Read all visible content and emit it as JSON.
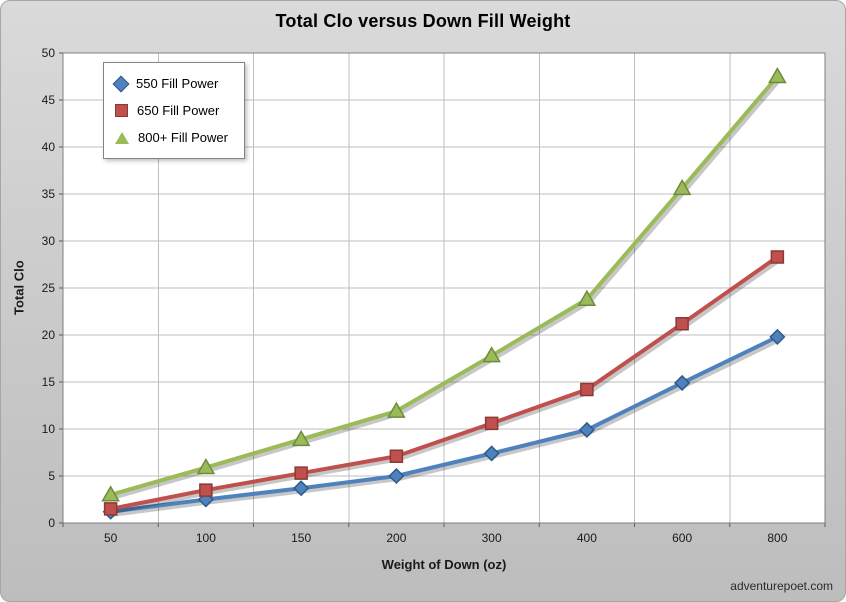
{
  "watermark": "adventurepoet.com",
  "chart_data": {
    "type": "line",
    "title": "Total Clo versus Down Fill Weight",
    "xlabel": "Weight of Down (oz)",
    "ylabel": "Total Clo",
    "categories": [
      "50",
      "100",
      "150",
      "200",
      "300",
      "400",
      "600",
      "800"
    ],
    "ylim": [
      0,
      50
    ],
    "ytick_step": 5,
    "grid": true,
    "legend_position": "top-left",
    "plot_background": "#ffffff",
    "gridline_color": "#bfbfbf",
    "series": [
      {
        "name": "550 Fill Power",
        "marker": "diamond",
        "color": "#4F81BD",
        "edge": "#2E5A87",
        "values": [
          1.2,
          2.5,
          3.7,
          5.0,
          7.4,
          9.9,
          14.9,
          19.8
        ]
      },
      {
        "name": "650 Fill Power",
        "marker": "square",
        "color": "#C0504D",
        "edge": "#8C3836",
        "values": [
          1.5,
          3.5,
          5.3,
          7.1,
          10.6,
          14.2,
          21.2,
          28.3
        ]
      },
      {
        "name": "800+ Fill Power",
        "marker": "triangle",
        "color": "#9BBB59",
        "edge": "#6E8B3D",
        "values": [
          3.0,
          5.9,
          8.9,
          11.9,
          17.8,
          23.8,
          35.6,
          47.5
        ]
      }
    ]
  }
}
